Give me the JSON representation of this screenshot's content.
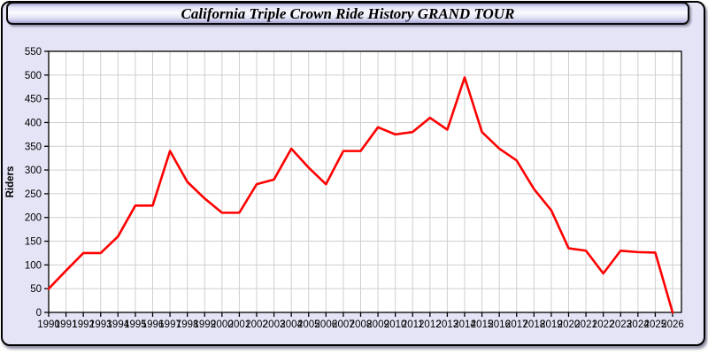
{
  "window": {
    "title": "California Triple Crown Ride History GRAND TOUR"
  },
  "colors": {
    "window_background": "#e4e4f6",
    "plot_background": "#ffffff",
    "grid": "#cfcfcf",
    "axis": "#000000",
    "tick_label": "#000000",
    "line": "#ff0000"
  },
  "chart_data": {
    "type": "line",
    "title": "California Triple Crown Ride History GRAND TOUR",
    "xlabel": "",
    "ylabel": "Riders",
    "ylim": [
      0,
      550
    ],
    "ytick_step": 50,
    "grid": true,
    "legend_position": "none",
    "x": [
      1990,
      1991,
      1992,
      1993,
      1994,
      1995,
      1996,
      1997,
      1998,
      1999,
      2000,
      2001,
      2002,
      2003,
      2004,
      2005,
      2006,
      2007,
      2008,
      2009,
      2010,
      2011,
      2012,
      2013,
      2014,
      2015,
      2016,
      2017,
      2018,
      2019,
      2020,
      2021,
      2022,
      2023,
      2024,
      2025,
      2026
    ],
    "series": [
      {
        "name": "Riders",
        "values": [
          50,
          88,
          125,
          125,
          160,
          225,
          225,
          340,
          275,
          240,
          210,
          210,
          270,
          280,
          345,
          305,
          270,
          340,
          340,
          390,
          375,
          380,
          410,
          385,
          495,
          380,
          345,
          320,
          260,
          215,
          135,
          130,
          82,
          130,
          127,
          126,
          0
        ]
      }
    ]
  }
}
